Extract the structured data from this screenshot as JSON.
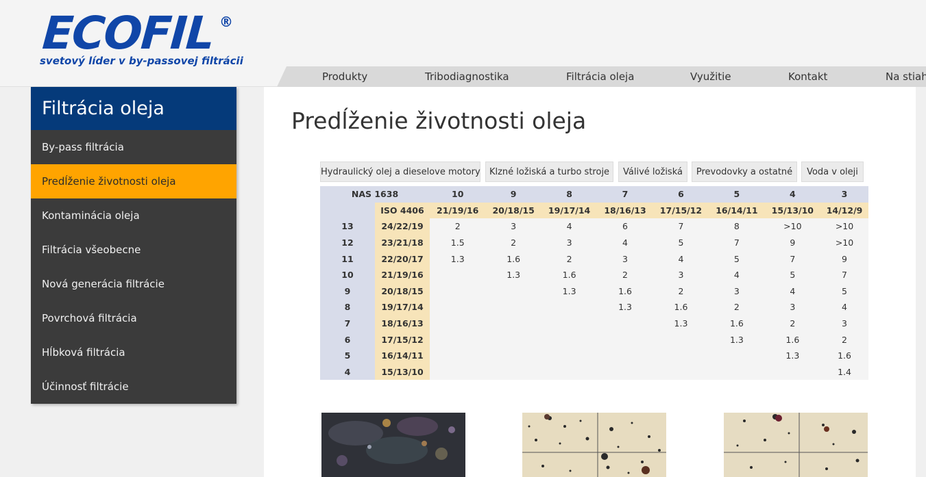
{
  "brand": {
    "name": "ECOFIL",
    "reg_mark": "®",
    "tagline": "svetový líder v by-passovej filtrácii",
    "color": "#1046a8"
  },
  "nav": [
    "Produkty",
    "Tribodiagnostika",
    "Filtrácia oleja",
    "Využitie",
    "Kontakt",
    "Na stiah"
  ],
  "sidebar": {
    "title": "Filtrácia oleja",
    "items": [
      "By-pass filtrácia",
      "Predĺženie životnosti oleja",
      "Kontaminácia oleja",
      "Filtrácia všeobecne",
      "Nová generácia filtrácie",
      "Povrchová filtrácia",
      "Hĺbková filtrácia",
      "Účinnosť filtrácie"
    ],
    "active_index": 1
  },
  "main": {
    "title": "Predĺženie životnosti oleja",
    "tabs": [
      "Hydraulický olej a dieselove motory",
      "Klzné ložiská a turbo stroje",
      "Válivé ložiská",
      "Prevodovky a ostatné",
      "Voda v oleji"
    ],
    "table": {
      "nas_label": "NAS 1638",
      "iso_label": "ISO 4406",
      "nas_cols": [
        "10",
        "9",
        "8",
        "7",
        "6",
        "5",
        "4",
        "3"
      ],
      "iso_cols": [
        "21/19/16",
        "20/18/15",
        "19/17/14",
        "18/16/13",
        "17/15/12",
        "16/14/11",
        "15/13/10",
        "14/12/9"
      ],
      "rows": [
        {
          "nas": "13",
          "iso": "24/22/19",
          "vals": [
            "2",
            "3",
            "4",
            "6",
            "7",
            "8",
            ">10",
            ">10"
          ]
        },
        {
          "nas": "12",
          "iso": "23/21/18",
          "vals": [
            "1.5",
            "2",
            "3",
            "4",
            "5",
            "7",
            "9",
            ">10"
          ]
        },
        {
          "nas": "11",
          "iso": "22/20/17",
          "vals": [
            "1.3",
            "1.6",
            "2",
            "3",
            "4",
            "5",
            "7",
            "9"
          ]
        },
        {
          "nas": "10",
          "iso": "21/19/16",
          "vals": [
            "",
            "1.3",
            "1.6",
            "2",
            "3",
            "4",
            "5",
            "7"
          ]
        },
        {
          "nas": "9",
          "iso": "20/18/15",
          "vals": [
            "",
            "",
            "1.3",
            "1.6",
            "2",
            "3",
            "4",
            "5"
          ]
        },
        {
          "nas": "8",
          "iso": "19/17/14",
          "vals": [
            "",
            "",
            "",
            "1.3",
            "1.6",
            "2",
            "3",
            "4"
          ]
        },
        {
          "nas": "7",
          "iso": "18/16/13",
          "vals": [
            "",
            "",
            "",
            "",
            "1.3",
            "1.6",
            "2",
            "3"
          ]
        },
        {
          "nas": "6",
          "iso": "17/15/12",
          "vals": [
            "",
            "",
            "",
            "",
            "",
            "1.3",
            "1.6",
            "2"
          ]
        },
        {
          "nas": "5",
          "iso": "16/14/11",
          "vals": [
            "",
            "",
            "",
            "",
            "",
            "",
            "1.3",
            "1.6"
          ]
        },
        {
          "nas": "4",
          "iso": "15/13/10",
          "vals": [
            "",
            "",
            "",
            "",
            "",
            "",
            "",
            "1.4"
          ]
        }
      ]
    }
  },
  "colors": {
    "sidebar_bg": "#3b3b3b",
    "sidebar_head": "#053a7a",
    "active": "#ffa400",
    "table_lavender": "#d8dcea",
    "table_tan": "#f7e4b9"
  }
}
